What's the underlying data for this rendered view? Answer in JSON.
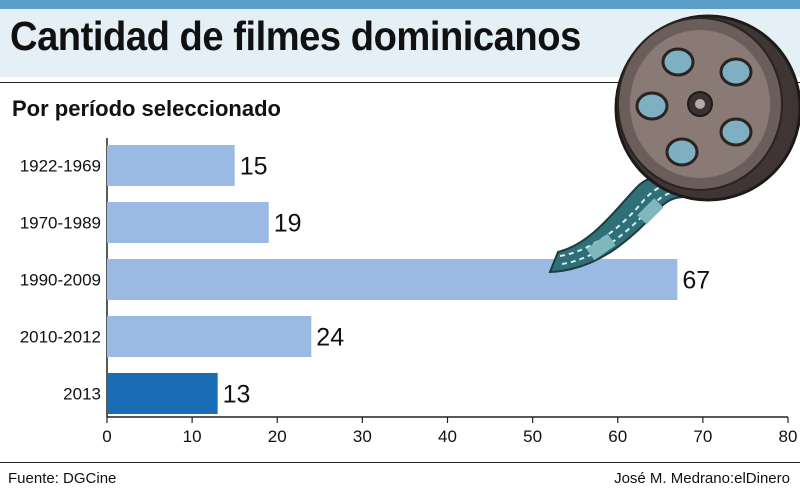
{
  "title": "Cantidad de filmes dominicanos",
  "subtitle": "Por período seleccionado",
  "source": "Fuente: DGCine",
  "credit": "José M. Medrano:elDinero",
  "colors": {
    "bar": "#9ab9e3",
    "bar_highlight": "#1a6db5",
    "stripe": "#5b9fc8",
    "band": "#e4f0f6"
  },
  "chart_data": {
    "type": "bar",
    "orientation": "horizontal",
    "categories": [
      "1922-1969",
      "1970-1989",
      "1990-2009",
      "2010-2012",
      "2013"
    ],
    "values": [
      15,
      19,
      67,
      24,
      13
    ],
    "highlight_index": 4,
    "xlim": [
      0,
      80
    ],
    "xticks": [
      0,
      10,
      20,
      30,
      40,
      50,
      60,
      70,
      80
    ],
    "title": "Cantidad de filmes dominicanos",
    "subtitle": "Por período seleccionado",
    "grid": false
  }
}
